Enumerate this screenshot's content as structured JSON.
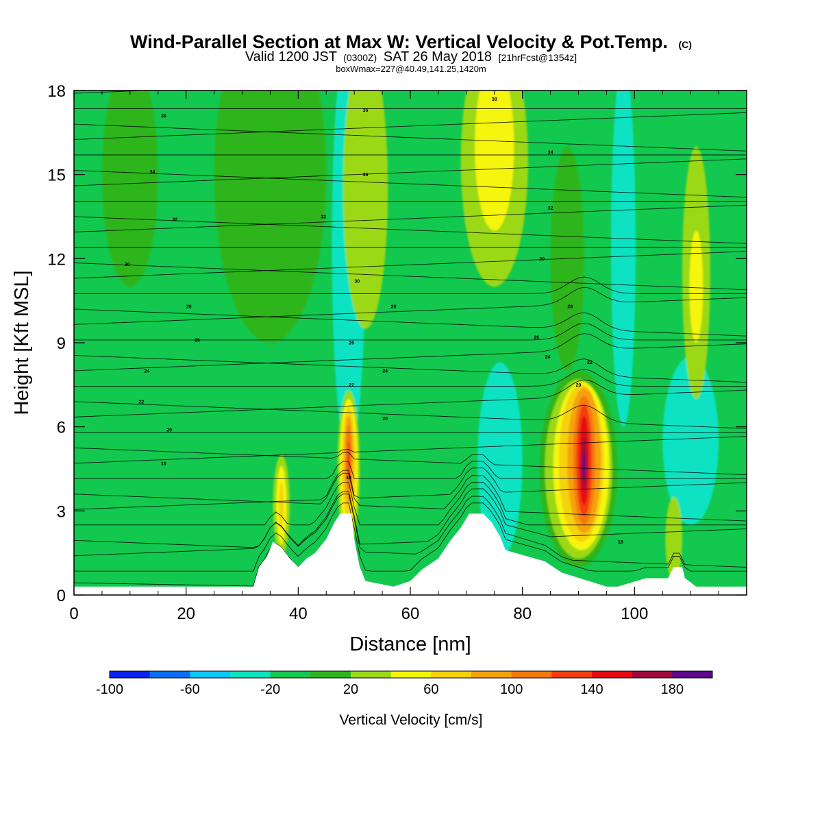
{
  "chart_data": {
    "type": "heatmap",
    "title": "Wind-Parallel Section at Max W: Vertical Velocity & Pot.Temp.",
    "title_mark": "(C)",
    "subtitle": {
      "valid": "Valid 1200 JST",
      "utc": "(0300Z)",
      "date": "SAT 26 May 2018",
      "fcst": "[21hrFcst@1354z]"
    },
    "subtitle2": "boxWmax=227@40.49,141.25,1420m",
    "xlabel": "Distance [nm]",
    "ylabel": "Height [Kft MSL]",
    "xlim": [
      0,
      120
    ],
    "ylim": [
      0,
      18
    ],
    "xticks": [
      0,
      20,
      40,
      60,
      80,
      100
    ],
    "yticks": [
      0,
      3,
      6,
      9,
      12,
      15,
      18
    ],
    "colorbar": {
      "label": "Vertical Velocity [cm/s]",
      "levels": [
        -100,
        -80,
        -60,
        -40,
        -20,
        0,
        20,
        40,
        60,
        80,
        100,
        120,
        140,
        160,
        180,
        200
      ],
      "tick_labels": [
        -100,
        -60,
        -20,
        20,
        60,
        100,
        140,
        180
      ],
      "colors": [
        "#0b23f2",
        "#0a6ef5",
        "#0cc8f7",
        "#0ee3c2",
        "#12c84f",
        "#2db51e",
        "#9bd914",
        "#f5f50a",
        "#f5d20a",
        "#f5a20a",
        "#f57a0a",
        "#f53c0a",
        "#e60a12",
        "#a0083c",
        "#5c0a8c"
      ]
    },
    "background_class_index": 4,
    "velocity_features": [
      {
        "x": 49.0,
        "z": 12.5,
        "rx": 1.0,
        "rz": 5.5,
        "level": 0
      },
      {
        "x": 49.0,
        "z": 12.5,
        "rx": 1.8,
        "rz": 6.5,
        "level": 1
      },
      {
        "x": 49.0,
        "z": 12.5,
        "rx": 2.4,
        "rz": 7.0,
        "level": 2
      },
      {
        "x": 49.0,
        "z": 12.5,
        "rx": 3.0,
        "rz": 7.5,
        "level": 3
      },
      {
        "x": 98.0,
        "z": 12.5,
        "rx": 1.2,
        "rz": 5.5,
        "level": 2
      },
      {
        "x": 98.0,
        "z": 12.5,
        "rx": 2.2,
        "rz": 6.5,
        "level": 3
      },
      {
        "x": 76.0,
        "z": 4.8,
        "rx": 2.0,
        "rz": 2.5,
        "level": 2
      },
      {
        "x": 76.0,
        "z": 4.8,
        "rx": 4.0,
        "rz": 3.5,
        "level": 3
      },
      {
        "x": 110.0,
        "z": 5.5,
        "rx": 5.0,
        "rz": 3.0,
        "level": 3
      },
      {
        "x": 52.0,
        "z": 14.5,
        "rx": 4.0,
        "rz": 5.0,
        "level": 6
      },
      {
        "x": 75.0,
        "z": 15.5,
        "rx": 6.0,
        "rz": 4.5,
        "level": 6
      },
      {
        "x": 75.0,
        "z": 16.0,
        "rx": 3.5,
        "rz": 3.0,
        "level": 7
      },
      {
        "x": 111.0,
        "z": 11.5,
        "rx": 2.5,
        "rz": 4.5,
        "level": 6
      },
      {
        "x": 111.0,
        "z": 11.0,
        "rx": 1.2,
        "rz": 2.0,
        "level": 7
      },
      {
        "x": 88.0,
        "z": 12.0,
        "rx": 3.0,
        "rz": 4.0,
        "level": 5
      },
      {
        "x": 35.0,
        "z": 15.0,
        "rx": 10.0,
        "rz": 6.0,
        "level": 5
      },
      {
        "x": 10.0,
        "z": 15.0,
        "rx": 5.0,
        "rz": 4.0,
        "level": 5
      },
      {
        "x": 90.0,
        "z": 4.5,
        "rx": 7.0,
        "rz": 3.5,
        "level": 5
      },
      {
        "x": 90.0,
        "z": 4.5,
        "rx": 6.0,
        "rz": 3.2,
        "level": 6
      },
      {
        "x": 90.5,
        "z": 4.6,
        "rx": 5.0,
        "rz": 3.0,
        "level": 7
      },
      {
        "x": 90.5,
        "z": 4.7,
        "rx": 4.0,
        "rz": 2.8,
        "level": 8
      },
      {
        "x": 91.0,
        "z": 4.8,
        "rx": 3.0,
        "rz": 2.6,
        "level": 9
      },
      {
        "x": 91.0,
        "z": 4.8,
        "rx": 2.0,
        "rz": 2.3,
        "level": 10
      },
      {
        "x": 91.0,
        "z": 4.8,
        "rx": 1.4,
        "rz": 2.0,
        "level": 11
      },
      {
        "x": 91.0,
        "z": 4.8,
        "rx": 0.9,
        "rz": 1.6,
        "level": 12
      },
      {
        "x": 91.0,
        "z": 4.7,
        "rx": 0.5,
        "rz": 1.0,
        "level": 13
      },
      {
        "x": 91.0,
        "z": 4.6,
        "rx": 0.25,
        "rz": 0.5,
        "level": 14
      },
      {
        "x": 49.0,
        "z": 4.5,
        "rx": 2.0,
        "rz": 2.8,
        "level": 6
      },
      {
        "x": 49.0,
        "z": 4.6,
        "rx": 1.6,
        "rz": 2.4,
        "level": 7
      },
      {
        "x": 49.0,
        "z": 4.7,
        "rx": 1.2,
        "rz": 2.0,
        "level": 8
      },
      {
        "x": 49.0,
        "z": 4.8,
        "rx": 0.8,
        "rz": 1.6,
        "level": 9
      },
      {
        "x": 49.0,
        "z": 4.9,
        "rx": 0.5,
        "rz": 1.2,
        "level": 10
      },
      {
        "x": 49.0,
        "z": 4.8,
        "rx": 0.25,
        "rz": 0.7,
        "level": 11
      },
      {
        "x": 37.0,
        "z": 3.2,
        "rx": 1.5,
        "rz": 1.8,
        "level": 6
      },
      {
        "x": 37.0,
        "z": 3.2,
        "rx": 0.9,
        "rz": 1.4,
        "level": 7
      },
      {
        "x": 37.0,
        "z": 3.2,
        "rx": 0.4,
        "rz": 0.8,
        "level": 8
      },
      {
        "x": 107.0,
        "z": 2.0,
        "rx": 1.5,
        "rz": 1.5,
        "level": 6
      }
    ],
    "terrain_ridge": [
      [
        0,
        0.3
      ],
      [
        32,
        0.3
      ],
      [
        33,
        1.0
      ],
      [
        34.5,
        1.4
      ],
      [
        35.5,
        1.9
      ],
      [
        37,
        1.7
      ],
      [
        38.5,
        1.3
      ],
      [
        40,
        1.0
      ],
      [
        41.5,
        1.3
      ],
      [
        43,
        1.5
      ],
      [
        45,
        2.0
      ],
      [
        46.5,
        2.6
      ],
      [
        47.5,
        2.9
      ],
      [
        49.5,
        2.9
      ],
      [
        50,
        2.0
      ],
      [
        51,
        1.0
      ],
      [
        52,
        0.5
      ],
      [
        57,
        0.3
      ],
      [
        60,
        0.5
      ],
      [
        62,
        0.9
      ],
      [
        65,
        1.3
      ],
      [
        67,
        1.9
      ],
      [
        69,
        2.4
      ],
      [
        70.5,
        2.9
      ],
      [
        73,
        2.9
      ],
      [
        74.5,
        2.6
      ],
      [
        76,
        2.1
      ],
      [
        77,
        1.6
      ],
      [
        84,
        1.2
      ],
      [
        87,
        0.8
      ],
      [
        95,
        0.3
      ],
      [
        97,
        0.3
      ],
      [
        102,
        0.6
      ],
      [
        106,
        0.6
      ],
      [
        107,
        1.0
      ],
      [
        108.5,
        1.0
      ],
      [
        109,
        0.6
      ],
      [
        111,
        0.3
      ],
      [
        120,
        0.3
      ]
    ],
    "theta_contours": [
      {
        "value": 16,
        "label_x": 16.0,
        "label_z": 4.7
      },
      {
        "value": 18,
        "label_x": 49.0,
        "label_z": 4.2
      },
      {
        "value": 20,
        "label_x": 17.0,
        "label_z": 5.9
      },
      {
        "value": 22,
        "label_x": 12.0,
        "label_z": 6.9
      },
      {
        "value": 24,
        "label_x": 13.0,
        "label_z": 8.0
      },
      {
        "value": 26,
        "label_x": 22.0,
        "label_z": 9.1
      },
      {
        "value": 28,
        "label_x": 20.5,
        "label_z": 10.3
      },
      {
        "value": 30,
        "label_x": 9.5,
        "label_z": 11.8
      },
      {
        "value": 32,
        "label_x": 18.0,
        "label_z": 13.4
      },
      {
        "value": 34,
        "label_x": 14.0,
        "label_z": 15.1
      },
      {
        "value": 36,
        "label_x": 16.0,
        "label_z": 17.1
      },
      {
        "value": 38,
        "label_x": 75.0,
        "label_z": 17.7
      }
    ],
    "extra_theta_labels": [
      {
        "text": "36",
        "x": 52.0,
        "z": 17.3
      },
      {
        "text": "36",
        "x": 52.0,
        "z": 15.0
      },
      {
        "text": "34",
        "x": 85.0,
        "z": 15.8
      },
      {
        "text": "32",
        "x": 44.5,
        "z": 13.5
      },
      {
        "text": "32",
        "x": 85.0,
        "z": 13.8
      },
      {
        "text": "30",
        "x": 83.5,
        "z": 12.0
      },
      {
        "text": "30",
        "x": 50.5,
        "z": 11.2
      },
      {
        "text": "28",
        "x": 57.0,
        "z": 10.3
      },
      {
        "text": "28",
        "x": 88.5,
        "z": 10.3
      },
      {
        "text": "26",
        "x": 82.5,
        "z": 9.2
      },
      {
        "text": "26",
        "x": 49.5,
        "z": 9.0
      },
      {
        "text": "24",
        "x": 84.5,
        "z": 8.5
      },
      {
        "text": "24",
        "x": 55.5,
        "z": 8.0
      },
      {
        "text": "22",
        "x": 92.0,
        "z": 8.3
      },
      {
        "text": "22",
        "x": 49.5,
        "z": 7.5
      },
      {
        "text": "20",
        "x": 90.0,
        "z": 7.5
      },
      {
        "text": "20",
        "x": 55.5,
        "z": 6.3
      },
      {
        "text": "18",
        "x": 97.5,
        "z": 1.9
      }
    ]
  }
}
